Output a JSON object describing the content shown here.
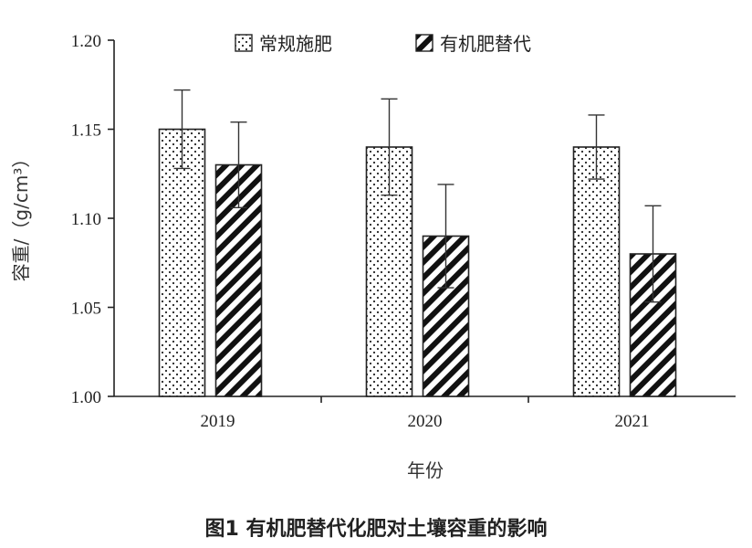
{
  "chart_data": {
    "type": "bar",
    "categories": [
      "2019",
      "2020",
      "2021"
    ],
    "series": [
      {
        "name": "常规施肥",
        "values": [
          1.15,
          1.14,
          1.14
        ],
        "errors": [
          0.022,
          0.027,
          0.018
        ],
        "pattern": "dots"
      },
      {
        "name": "有机肥替代",
        "values": [
          1.13,
          1.09,
          1.08
        ],
        "errors": [
          0.024,
          0.029,
          0.027
        ],
        "pattern": "hatch"
      }
    ],
    "xlabel": "年份",
    "ylabel": "容重/（g/cm³）",
    "ylim": [
      1.0,
      1.2
    ],
    "yticks": [
      "1.00",
      "1.05",
      "1.10",
      "1.15",
      "1.20"
    ],
    "grid": false,
    "legend_position": "top"
  },
  "caption": "图1 有机肥替代化肥对土壤容重的影响"
}
